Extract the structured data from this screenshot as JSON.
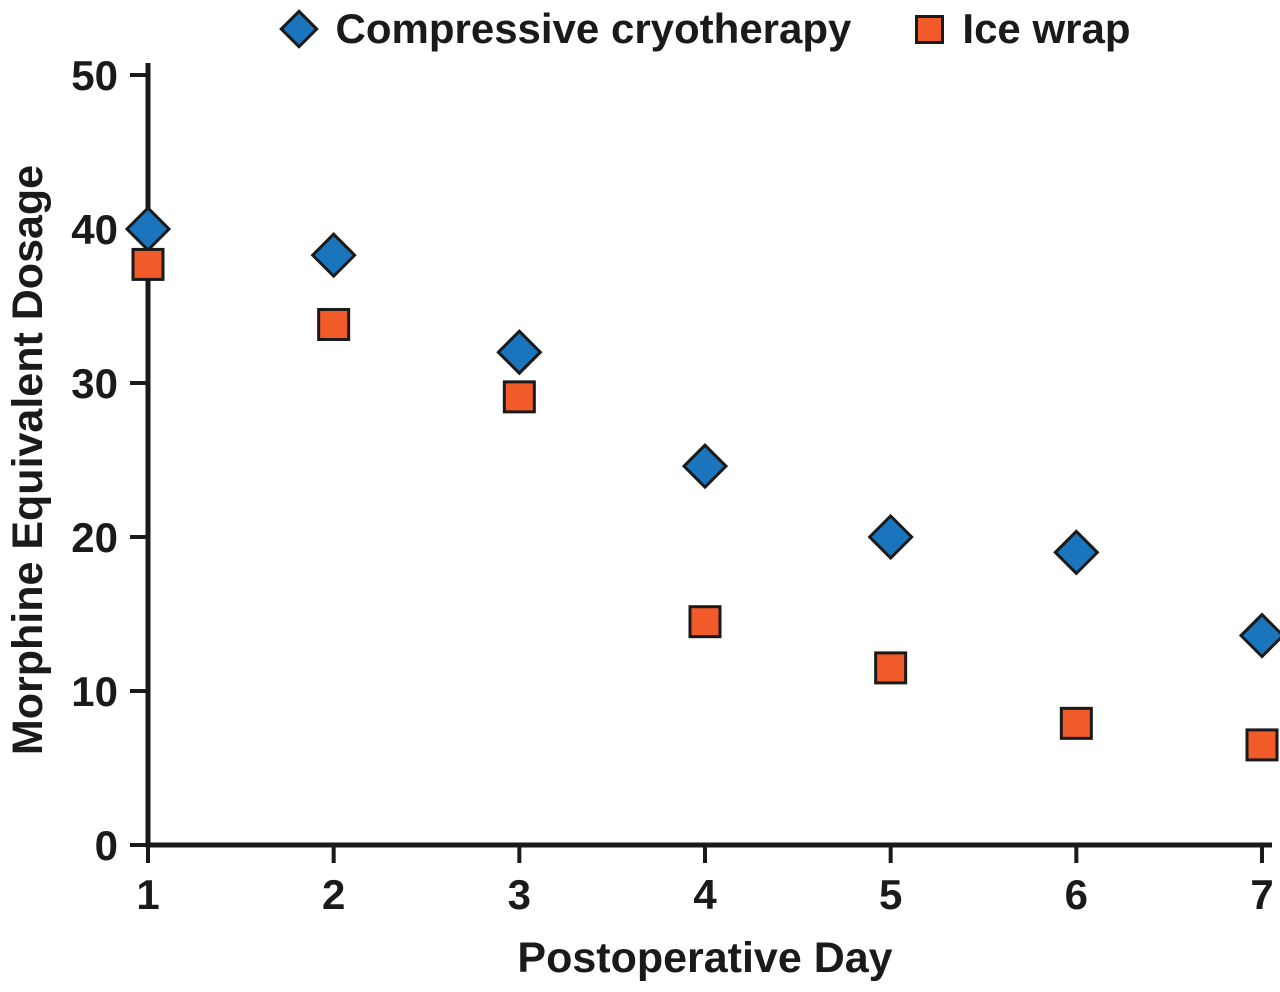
{
  "chart_data": {
    "type": "scatter",
    "title": "",
    "xlabel": "Postoperative Day",
    "ylabel": "Morphine Equivalent Dosage",
    "x": [
      1,
      2,
      3,
      4,
      5,
      6,
      7
    ],
    "x_ticks": [
      1,
      2,
      3,
      4,
      5,
      6,
      7
    ],
    "y_ticks": [
      0,
      10,
      20,
      30,
      40,
      50
    ],
    "xlim": [
      1,
      7
    ],
    "ylim": [
      0,
      50
    ],
    "grid": false,
    "legend_position": "top",
    "series": [
      {
        "name": "Compressive cryotherapy",
        "marker": "diamond",
        "color": "#1b75bc",
        "values": [
          40,
          38.3,
          32,
          24.6,
          20,
          19,
          13.6
        ]
      },
      {
        "name": "Ice wrap",
        "marker": "square",
        "color": "#f15b2a",
        "values": [
          37.7,
          33.8,
          29.1,
          14.5,
          11.5,
          7.9,
          6.5
        ]
      }
    ]
  }
}
